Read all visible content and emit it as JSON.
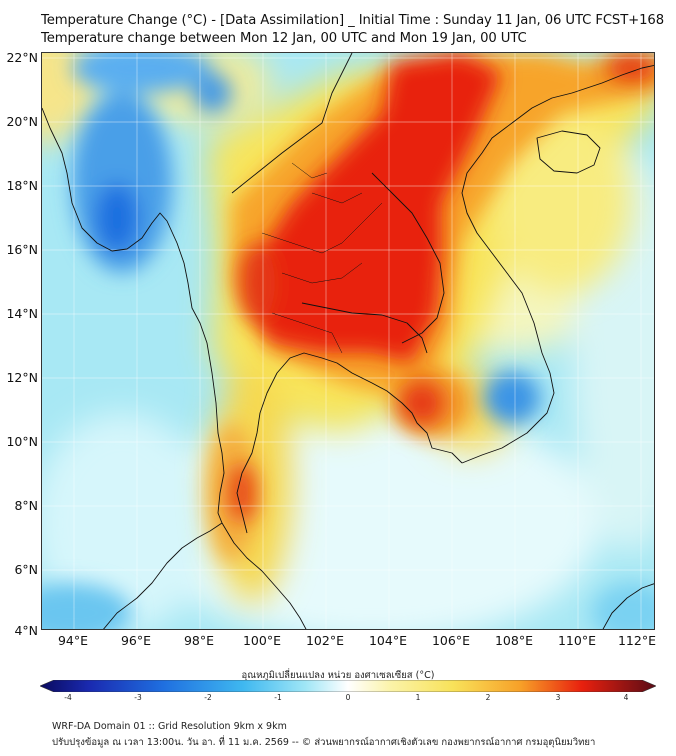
{
  "header": {
    "title_line1": "Temperature Change (°C) - [Data Assimilation] _ Initial Time : Sunday 11 Jan, 06 UTC FCST+168",
    "title_line2": "Temperature change between Mon 12 Jan, 00 UTC and Mon 19 Jan, 00 UTC"
  },
  "map": {
    "lat_labels": [
      "22°N",
      "20°N",
      "18°N",
      "16°N",
      "14°N",
      "12°N",
      "10°N",
      "8°N",
      "6°N",
      "4°N"
    ],
    "lon_labels": [
      "94°E",
      "96°E",
      "98°E",
      "100°E",
      "102°E",
      "104°E",
      "106°E",
      "108°E",
      "110°E",
      "112°E"
    ],
    "lat_range": [
      4,
      22
    ],
    "lon_range": [
      93,
      112.5
    ]
  },
  "colorbar": {
    "label": "อุณหภูมิเปลี่ยนแปลง หน่วย องศาเซลเซียส (°C)",
    "range": [
      -4,
      4
    ],
    "ticks": [
      "-4",
      "-3",
      "-2",
      "-1",
      "0",
      "1",
      "2",
      "3",
      "4"
    ],
    "colors": {
      "dark_blue": "#1a1a8a",
      "blue": "#1f6fe0",
      "light_blue": "#5ad2f5",
      "pale": "#e9fbfd",
      "yellow": "#f8e25a",
      "orange": "#f7a028",
      "red": "#e8200e",
      "dark_red": "#6b0f18"
    }
  },
  "footer": {
    "line1": "WRF-DA Domain 01 :: Grid Resolution 9km x 9km",
    "line2": "ปรับปรุงข้อมูล ณ เวลา 13:00น. วัน อา. ที่ 11 ม.ค. 2569 -- © ส่วนพยากรณ์อากาศเชิงตัวเลข กองพยากรณ์อากาศ กรมอุตุนิยมวิทยา"
  }
}
